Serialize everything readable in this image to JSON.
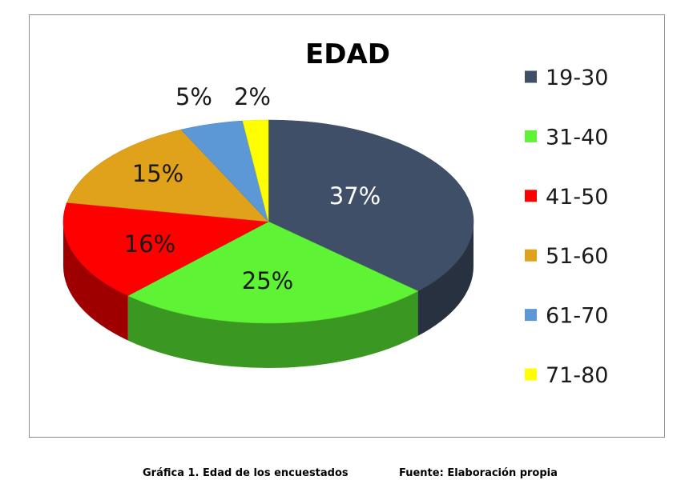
{
  "chart_data": {
    "type": "pie",
    "title": "EDAD",
    "categories": [
      "19-30",
      "31-40",
      "41-50",
      "51-60",
      "61-70",
      "71-80"
    ],
    "values": [
      37,
      25,
      16,
      15,
      5,
      2
    ],
    "labels": [
      "37%",
      "25%",
      "16%",
      "15%",
      "5%",
      "2%"
    ],
    "colors": [
      "#3f4f68",
      "#5ef335",
      "#ff0000",
      "#e0a21a",
      "#5d98d6",
      "#ffff00"
    ],
    "label_colors": [
      "#ffffff",
      "#1a1a1a",
      "#1a1a1a",
      "#1a1a1a",
      "#1a1a1a",
      "#1a1a1a"
    ],
    "legend_position": "right",
    "three_d": true
  },
  "caption": {
    "figure": "Gráfica 1. Edad de los encuestados",
    "source": "Fuente: Elaboración propia"
  }
}
